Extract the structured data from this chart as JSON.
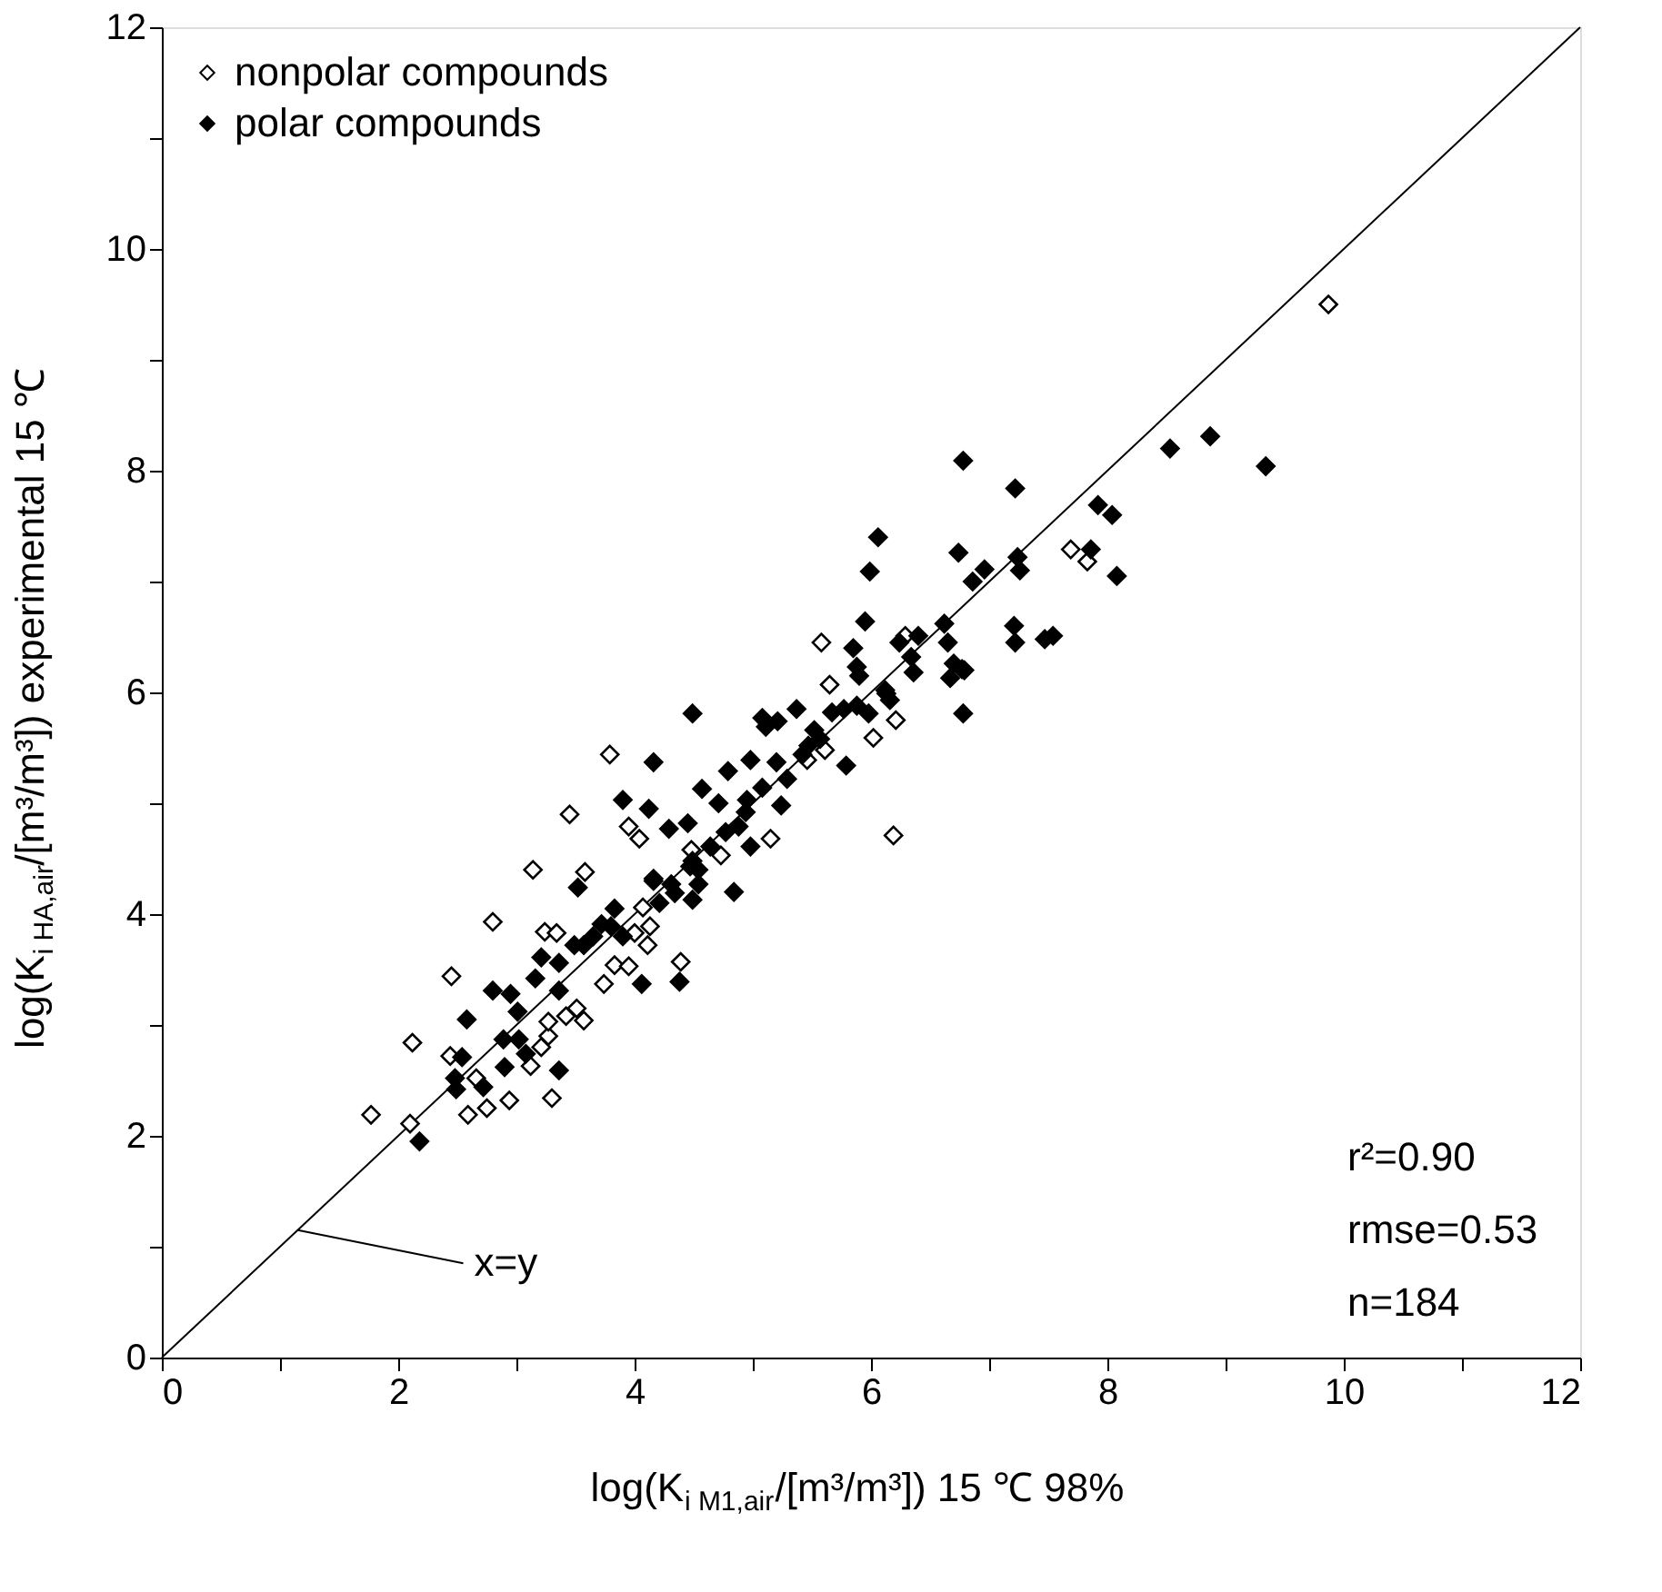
{
  "chart_data": {
    "type": "scatter",
    "xlabel": "log(K$_{i M1,air}$/[m³/m³])  15 ℃ 98%",
    "ylabel": "log(K$_{i HA,air}$/[m³/m³])  experimental 15 ℃",
    "xlim": [
      0,
      12
    ],
    "ylim": [
      0,
      12
    ],
    "xticks": [
      0,
      {
        "value": 1,
        "label": null
      },
      2,
      {
        "value": 3,
        "label": null
      },
      4,
      {
        "value": 5,
        "label": null
      },
      6,
      {
        "value": 7,
        "label": null
      },
      8,
      {
        "value": 9,
        "label": null
      },
      10,
      {
        "value": 11,
        "label": null
      },
      12
    ],
    "yticks": [
      0,
      {
        "value": 1,
        "label": null
      },
      2,
      {
        "value": 3,
        "label": null
      },
      4,
      {
        "value": 5,
        "label": null
      },
      6,
      {
        "value": 7,
        "label": null
      },
      8,
      {
        "value": 9,
        "label": null
      },
      10,
      {
        "value": 11,
        "label": null
      },
      12
    ],
    "grid": false,
    "legend": "top left",
    "annotations": [
      {
        "text": "x=y",
        "x": 1.15,
        "y": 1.15
      },
      "r²=0.90",
      "rmse=0.53",
      "n=184"
    ],
    "series": [
      {
        "name": "nonpolar compounds",
        "marker": "diamond",
        "color": "#ffffff",
        "x": [
          1.77,
          2.1,
          2.12,
          2.45,
          2.8,
          3.14,
          3.58,
          2.44,
          2.66,
          2.59,
          2.75,
          2.94,
          3.3,
          3.12,
          3.21,
          3.27,
          3.27,
          3.42,
          3.51,
          3.57,
          3.24,
          3.34,
          3.74,
          3.83,
          3.95,
          4.39,
          4.0,
          4.11,
          4.07,
          4.13,
          5.58,
          6.29,
          5.65,
          6.21,
          6.02,
          5.61,
          5.46,
          3.79,
          3.45,
          3.95,
          4.04,
          4.48,
          4.73,
          5.15,
          6.19,
          9.87,
          7.69,
          7.83
        ],
        "values": [
          2.19,
          2.11,
          2.84,
          3.44,
          3.93,
          4.4,
          4.38,
          2.72,
          2.52,
          2.19,
          2.25,
          2.32,
          2.34,
          2.63,
          2.8,
          2.9,
          3.03,
          3.08,
          3.15,
          3.04,
          3.84,
          3.83,
          3.37,
          3.54,
          3.53,
          3.57,
          3.83,
          3.72,
          4.06,
          3.89,
          6.45,
          6.51,
          6.07,
          5.75,
          5.59,
          5.48,
          5.39,
          5.44,
          4.9,
          4.79,
          4.68,
          4.58,
          4.53,
          4.68,
          4.71,
          9.5,
          7.29,
          7.18
        ]
      },
      {
        "name": "polar compounds",
        "marker": "diamond",
        "color": "#000000",
        "x": [
          2.18,
          2.58,
          2.54,
          2.48,
          2.49,
          2.72,
          2.9,
          2.89,
          3.02,
          3.08,
          3.36,
          2.8,
          2.95,
          3.01,
          3.16,
          3.21,
          3.36,
          3.36,
          3.52,
          3.57,
          3.72,
          3.83,
          3.9,
          4.06,
          4.38,
          4.16,
          4.31,
          5.95,
          5.85,
          5.88,
          5.9,
          6.24,
          6.4,
          6.62,
          6.65,
          6.34,
          6.36,
          6.67,
          6.77,
          6.78,
          4.49,
          4.16,
          3.9,
          4.12,
          4.29,
          4.45,
          4.57,
          4.79,
          4.71,
          4.98,
          5.08,
          5.11,
          5.21,
          5.37,
          5.2,
          5.08,
          5.24,
          5.29,
          4.95,
          4.94,
          4.88,
          4.77,
          4.98,
          4.64,
          4.49,
          4.47,
          4.54,
          4.54,
          4.49,
          4.84,
          4.34,
          4.21,
          5.52,
          5.57,
          5.47,
          5.42,
          5.67,
          5.77,
          5.88,
          5.98,
          6.13,
          6.16,
          5.79,
          3.49,
          3.65,
          3.8,
          4.16,
          6.78,
          7.22,
          6.06,
          5.99,
          6.74,
          6.86,
          6.96,
          7.24,
          7.26,
          7.92,
          8.04,
          7.86,
          8.08,
          8.53,
          8.87,
          9.34,
          7.21,
          7.22,
          7.47,
          7.54,
          6.7,
          6.79,
          6.12
        ],
        "values": [
          1.95,
          3.05,
          2.71,
          2.52,
          2.42,
          2.44,
          2.62,
          2.87,
          2.87,
          2.74,
          2.59,
          3.31,
          3.28,
          3.12,
          3.42,
          3.61,
          3.56,
          3.31,
          4.24,
          3.72,
          3.91,
          4.05,
          3.8,
          3.37,
          3.39,
          4.3,
          4.27,
          6.64,
          6.4,
          6.23,
          6.15,
          6.45,
          6.51,
          6.62,
          6.45,
          6.32,
          6.18,
          6.13,
          6.21,
          5.81,
          5.81,
          5.37,
          5.03,
          4.95,
          4.77,
          4.82,
          5.13,
          5.29,
          5.0,
          5.39,
          5.77,
          5.69,
          5.74,
          5.85,
          5.37,
          5.14,
          4.98,
          5.22,
          5.03,
          4.92,
          4.79,
          4.74,
          4.61,
          4.61,
          4.48,
          4.43,
          4.4,
          4.27,
          4.13,
          4.2,
          4.19,
          4.1,
          5.66,
          5.58,
          5.52,
          5.44,
          5.82,
          5.85,
          5.88,
          5.81,
          5.99,
          5.93,
          5.34,
          3.72,
          3.8,
          3.89,
          4.32,
          8.09,
          7.84,
          7.4,
          7.09,
          7.26,
          7.0,
          7.11,
          7.22,
          7.1,
          7.69,
          7.6,
          7.29,
          7.05,
          8.2,
          8.31,
          8.04,
          6.6,
          6.45,
          6.48,
          6.51,
          6.26,
          6.2,
          6.02
        ]
      },
      {
        "type": "line",
        "marker": "none",
        "color": "#000000",
        "x": [
          0,
          12
        ],
        "values": [
          0,
          12
        ]
      }
    ]
  }
}
